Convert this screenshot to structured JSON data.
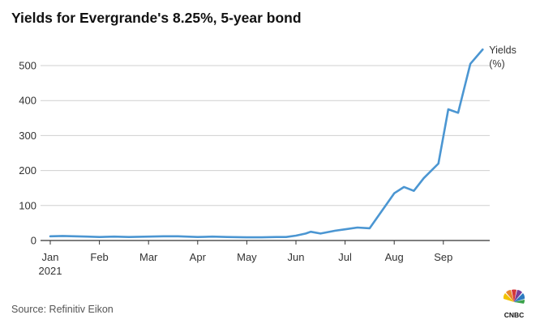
{
  "title": "Yields for Evergrande's 8.25%, 5-year bond",
  "source": "Source: Refinitiv Eikon",
  "logo": {
    "name": "CNBC",
    "text": "CNBC"
  },
  "chart_data": {
    "type": "line",
    "title": "Yields for Evergrande's 8.25%, 5-year bond",
    "xlabel": "",
    "ylabel": "",
    "ylim": [
      0,
      550
    ],
    "grid": true,
    "y_ticks": [
      "0",
      "100",
      "200",
      "300",
      "400",
      "500"
    ],
    "x_ticks": [
      {
        "label": "Jan",
        "sub": "2021",
        "month": 0
      },
      {
        "label": "Feb",
        "month": 1
      },
      {
        "label": "Mar",
        "month": 2
      },
      {
        "label": "Apr",
        "month": 3
      },
      {
        "label": "May",
        "month": 4
      },
      {
        "label": "Jun",
        "month": 5
      },
      {
        "label": "Jul",
        "month": 6
      },
      {
        "label": "Aug",
        "month": 7
      },
      {
        "label": "Sep",
        "month": 8
      }
    ],
    "colors": {
      "line": "#4b96d2",
      "grid": "#cfcfcf",
      "axis": "#333333"
    },
    "series": [
      {
        "name": "Yields (%)",
        "label_lines": [
          "Yields",
          "(%)"
        ],
        "points": [
          [
            0.0,
            12
          ],
          [
            0.25,
            13
          ],
          [
            0.5,
            12
          ],
          [
            0.75,
            11
          ],
          [
            1.0,
            10
          ],
          [
            1.3,
            11
          ],
          [
            1.6,
            10
          ],
          [
            2.0,
            11
          ],
          [
            2.3,
            12
          ],
          [
            2.6,
            12
          ],
          [
            3.0,
            10
          ],
          [
            3.3,
            11
          ],
          [
            3.6,
            10
          ],
          [
            4.0,
            9
          ],
          [
            4.3,
            9
          ],
          [
            4.6,
            10
          ],
          [
            4.8,
            10
          ],
          [
            5.0,
            14
          ],
          [
            5.2,
            20
          ],
          [
            5.3,
            25
          ],
          [
            5.5,
            20
          ],
          [
            5.8,
            28
          ],
          [
            6.0,
            32
          ],
          [
            6.25,
            37
          ],
          [
            6.5,
            35
          ],
          [
            6.75,
            85
          ],
          [
            7.0,
            135
          ],
          [
            7.2,
            153
          ],
          [
            7.4,
            142
          ],
          [
            7.6,
            178
          ],
          [
            7.9,
            220
          ],
          [
            8.1,
            375
          ],
          [
            8.3,
            365
          ],
          [
            8.55,
            505
          ],
          [
            8.8,
            546
          ]
        ]
      }
    ]
  }
}
